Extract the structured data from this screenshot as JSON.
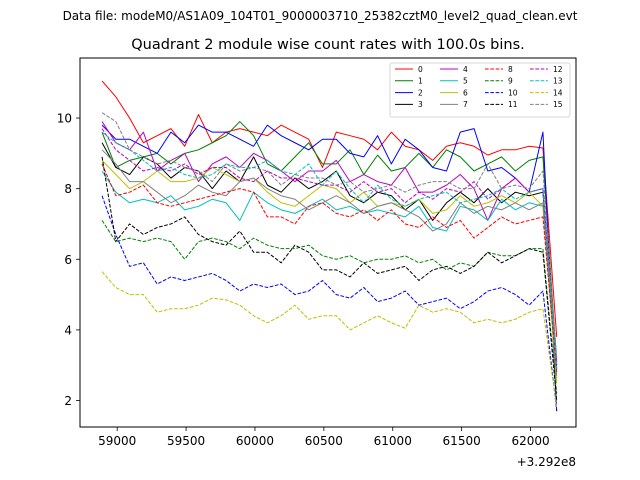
{
  "suptitle": "Data file: modeM0/AS1A09_104T01_9000003710_25382cztM0_level2_quad_clean.evt",
  "chart_data": {
    "type": "line",
    "title": "Quadrant 2 module wise count rates with 100.0s bins.",
    "xlabel": "",
    "ylabel": "",
    "x_offset_label": "+3.292e8",
    "xlim": [
      58730,
      62330
    ],
    "ylim": [
      1.25,
      11.7
    ],
    "x_ticks": [
      59000,
      59500,
      60000,
      60500,
      61000,
      61500,
      62000
    ],
    "x_tick_labels": [
      "59000",
      "59500",
      "60000",
      "60500",
      "61000",
      "61500",
      "62000"
    ],
    "y_ticks": [
      2,
      4,
      6,
      8,
      10
    ],
    "y_tick_labels": [
      "2",
      "4",
      "6",
      "8",
      "10"
    ],
    "x": [
      58890,
      58990,
      59090,
      59190,
      59290,
      59390,
      59490,
      59590,
      59690,
      59790,
      59890,
      59990,
      60090,
      60190,
      60290,
      60390,
      60490,
      60590,
      60690,
      60790,
      60890,
      60990,
      61090,
      61190,
      61290,
      61390,
      61490,
      61590,
      61690,
      61790,
      61890,
      61990,
      62090,
      62190
    ],
    "legend_position": "upper-right",
    "series": [
      {
        "name": "0",
        "color": "#ff0000",
        "dash": "solid",
        "values": [
          11.05,
          10.6,
          10.0,
          9.3,
          9.5,
          9.7,
          9.2,
          10.1,
          9.3,
          9.6,
          9.7,
          9.6,
          9.5,
          9.8,
          9.6,
          9.4,
          8.6,
          9.6,
          9.5,
          9.4,
          9.1,
          9.6,
          9.2,
          9.1,
          8.8,
          9.2,
          9.3,
          9.2,
          8.95,
          9.1,
          9.1,
          9.2,
          9.15,
          3.8
        ]
      },
      {
        "name": "1",
        "color": "#008000",
        "dash": "solid",
        "values": [
          9.6,
          8.6,
          8.8,
          8.9,
          9.0,
          8.7,
          9.0,
          9.1,
          9.3,
          9.5,
          9.9,
          9.5,
          8.7,
          8.5,
          8.9,
          9.3,
          8.7,
          8.7,
          9.1,
          8.4,
          8.95,
          8.5,
          8.6,
          9.0,
          8.6,
          9.1,
          8.9,
          8.5,
          8.7,
          8.9,
          8.5,
          8.8,
          8.9,
          3.0
        ]
      },
      {
        "name": "2",
        "color": "#0000ff",
        "dash": "solid",
        "values": [
          9.8,
          9.4,
          9.4,
          9.2,
          9.0,
          9.6,
          9.3,
          9.8,
          9.6,
          9.6,
          9.4,
          9.2,
          9.8,
          9.5,
          9.3,
          9.1,
          9.4,
          9.4,
          9.0,
          8.9,
          9.5,
          8.7,
          9.4,
          9.1,
          8.6,
          8.5,
          9.6,
          9.7,
          8.5,
          8.6,
          8.3,
          7.9,
          9.6,
          1.7
        ]
      },
      {
        "name": "3",
        "color": "#000000",
        "dash": "solid",
        "values": [
          9.3,
          8.6,
          8.4,
          8.9,
          8.7,
          8.3,
          8.6,
          8.5,
          8.0,
          8.5,
          8.2,
          8.9,
          8.1,
          7.9,
          8.3,
          8.0,
          8.2,
          8.5,
          7.8,
          7.6,
          7.9,
          7.8,
          7.4,
          7.7,
          7.1,
          7.6,
          7.9,
          7.6,
          8.0,
          7.6,
          7.9,
          7.8,
          7.9,
          2.9
        ]
      },
      {
        "name": "4",
        "color": "#bf00bf",
        "dash": "solid",
        "values": [
          9.9,
          9.3,
          9.1,
          9.6,
          8.5,
          8.8,
          9.0,
          8.2,
          8.7,
          8.9,
          8.6,
          9.0,
          8.8,
          8.5,
          8.2,
          8.5,
          8.5,
          8.8,
          8.2,
          8.4,
          8.2,
          8.1,
          8.6,
          7.9,
          7.9,
          8.1,
          8.4,
          8.0,
          7.1,
          8.0,
          8.3,
          7.9,
          8.0,
          3.1
        ]
      },
      {
        "name": "5",
        "color": "#00bfbf",
        "dash": "solid",
        "values": [
          8.5,
          7.9,
          7.6,
          7.7,
          7.6,
          7.8,
          7.4,
          7.5,
          7.7,
          7.6,
          7.1,
          7.9,
          7.6,
          7.4,
          7.3,
          7.5,
          7.7,
          7.4,
          7.5,
          7.3,
          7.4,
          7.3,
          7.2,
          7.5,
          6.9,
          6.8,
          7.5,
          7.4,
          7.1,
          7.7,
          7.4,
          7.6,
          7.5,
          3.2
        ]
      },
      {
        "name": "6",
        "color": "#bfbf00",
        "dash": "solid",
        "values": [
          8.8,
          8.4,
          8.0,
          8.2,
          8.5,
          8.2,
          8.2,
          8.3,
          8.6,
          8.4,
          8.2,
          8.3,
          7.9,
          7.6,
          7.5,
          7.8,
          8.1,
          8.0,
          7.6,
          7.9,
          7.5,
          7.6,
          7.5,
          7.7,
          7.3,
          7.4,
          7.8,
          7.5,
          7.6,
          7.8,
          7.6,
          7.9,
          7.5,
          2.5
        ]
      },
      {
        "name": "7",
        "color": "#808080",
        "dash": "solid",
        "values": [
          9.1,
          8.7,
          8.2,
          8.2,
          7.9,
          7.6,
          7.8,
          8.1,
          7.9,
          7.8,
          8.2,
          8.3,
          8.0,
          7.8,
          7.7,
          7.4,
          7.6,
          7.8,
          7.6,
          7.3,
          7.5,
          7.6,
          7.4,
          7.2,
          6.8,
          7.0,
          7.6,
          7.3,
          7.5,
          7.4,
          7.6,
          7.4,
          7.6,
          2.7
        ]
      },
      {
        "name": "8",
        "color": "#ff0000",
        "dash": "dashed",
        "values": [
          8.7,
          7.8,
          7.9,
          8.1,
          7.6,
          7.5,
          7.6,
          7.7,
          7.8,
          7.9,
          8.0,
          7.9,
          7.2,
          7.2,
          7.0,
          7.5,
          7.6,
          7.3,
          7.2,
          7.4,
          7.1,
          7.4,
          7.0,
          6.9,
          7.2,
          6.9,
          7.1,
          6.6,
          6.9,
          7.2,
          7.0,
          7.1,
          7.2,
          2.8
        ]
      },
      {
        "name": "9",
        "color": "#008000",
        "dash": "dashed",
        "values": [
          7.1,
          6.5,
          6.6,
          6.5,
          6.6,
          6.5,
          6.0,
          6.5,
          6.6,
          6.5,
          6.3,
          6.6,
          6.4,
          6.3,
          6.3,
          6.4,
          6.1,
          6.0,
          6.1,
          5.9,
          6.0,
          6.0,
          6.1,
          5.9,
          6.0,
          5.7,
          5.9,
          5.8,
          6.2,
          6.1,
          6.1,
          6.3,
          6.3,
          2.2
        ]
      },
      {
        "name": "10",
        "color": "#0000ff",
        "dash": "dashed",
        "values": [
          7.8,
          6.7,
          5.8,
          5.9,
          5.3,
          5.5,
          5.4,
          5.5,
          5.6,
          5.4,
          5.1,
          5.3,
          5.2,
          5.3,
          5.0,
          5.1,
          5.4,
          5.0,
          4.9,
          5.2,
          4.8,
          4.9,
          5.1,
          4.7,
          4.8,
          4.9,
          4.6,
          4.8,
          5.1,
          5.2,
          5.0,
          4.7,
          5.1,
          1.7
        ]
      },
      {
        "name": "11",
        "color": "#000000",
        "dash": "dashed",
        "values": [
          8.9,
          6.5,
          7.0,
          6.7,
          6.9,
          7.0,
          7.2,
          6.7,
          6.5,
          6.4,
          6.8,
          6.2,
          6.2,
          5.9,
          6.4,
          6.2,
          5.7,
          5.7,
          5.5,
          5.9,
          5.6,
          5.7,
          5.8,
          5.4,
          5.7,
          5.8,
          5.6,
          5.8,
          6.2,
          5.9,
          6.1,
          6.3,
          6.2,
          2.0
        ]
      },
      {
        "name": "12",
        "color": "#bf00bf",
        "dash": "dashed",
        "values": [
          9.7,
          9.1,
          8.8,
          8.5,
          8.6,
          8.5,
          8.7,
          8.4,
          8.6,
          8.6,
          8.3,
          8.2,
          8.5,
          8.3,
          8.3,
          8.2,
          8.1,
          8.1,
          7.9,
          8.2,
          7.9,
          8.0,
          7.6,
          7.9,
          7.7,
          8.0,
          7.9,
          8.2,
          7.7,
          8.0,
          8.3,
          7.9,
          8.0,
          3.0
        ]
      },
      {
        "name": "13",
        "color": "#00bfbf",
        "dash": "dashed",
        "values": [
          9.6,
          9.3,
          9.1,
          8.8,
          8.5,
          8.6,
          8.4,
          8.3,
          8.4,
          8.7,
          8.6,
          8.6,
          8.8,
          8.5,
          8.4,
          8.7,
          8.1,
          8.5,
          8.0,
          7.6,
          8.1,
          7.7,
          7.5,
          7.7,
          7.8,
          7.9,
          7.6,
          7.7,
          7.8,
          8.0,
          7.7,
          7.9,
          8.0,
          2.9
        ]
      },
      {
        "name": "14",
        "color": "#bfbf00",
        "dash": "dashed",
        "values": [
          5.65,
          5.2,
          5.0,
          5.0,
          4.5,
          4.6,
          4.6,
          4.7,
          4.9,
          4.85,
          4.7,
          4.4,
          4.2,
          4.4,
          4.7,
          4.3,
          4.4,
          4.4,
          4.0,
          4.2,
          4.4,
          4.2,
          4.05,
          4.7,
          4.5,
          4.6,
          4.5,
          4.2,
          4.3,
          4.2,
          4.3,
          4.5,
          4.6,
          1.8
        ]
      },
      {
        "name": "15",
        "color": "#808080",
        "dash": "dashed",
        "values": [
          10.15,
          9.9,
          9.1,
          8.9,
          8.7,
          8.8,
          8.6,
          8.5,
          8.2,
          8.7,
          8.5,
          8.6,
          8.5,
          8.1,
          8.4,
          8.3,
          8.3,
          8.1,
          8.2,
          7.9,
          8.0,
          8.1,
          7.9,
          8.1,
          8.2,
          8.2,
          8.0,
          8.0,
          8.7,
          8.0,
          8.1,
          8.0,
          8.5,
          3.2
        ]
      }
    ]
  }
}
